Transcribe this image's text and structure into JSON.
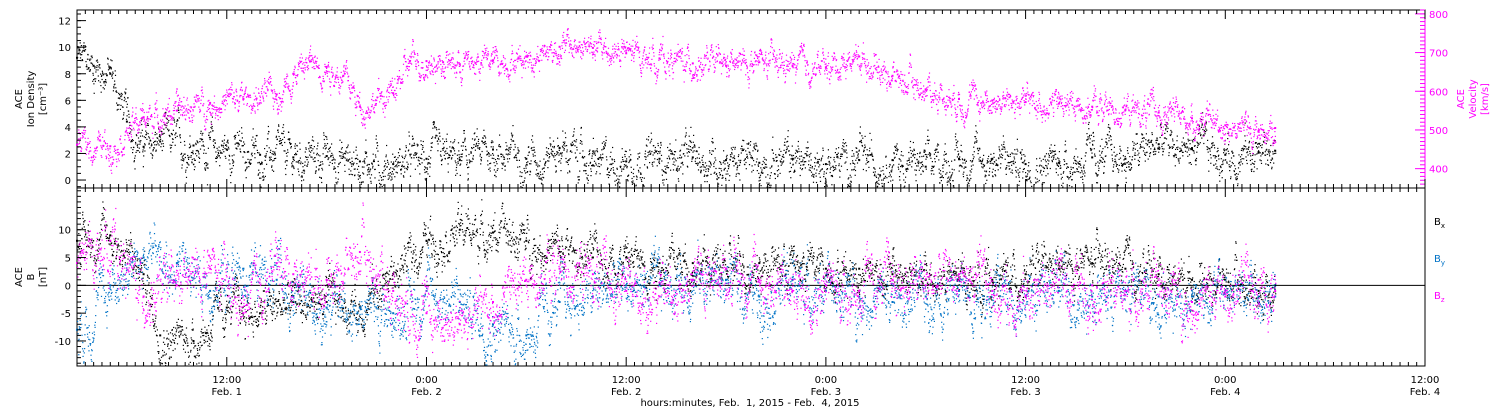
{
  "chart_data": [
    {
      "type": "scatter",
      "panel": "plasma",
      "ylabel_left": [
        "ACE",
        "Ion Density",
        "[cm⁻³]"
      ],
      "ylabel_right": [
        "ACE",
        "Velocity",
        "[km/s]"
      ],
      "ylim_left": [
        -0.6,
        12.8
      ],
      "ylim_right": [
        350,
        810
      ],
      "yticks_left": [
        "0",
        "2",
        "4",
        "6",
        "8",
        "10",
        "12"
      ],
      "yticks_right": [
        "400",
        "500",
        "600",
        "700",
        "800"
      ],
      "series": [
        {
          "axis": "left",
          "color": "#000000",
          "x": [
            -6,
            -4,
            -2,
            0,
            2,
            4,
            8,
            12,
            16,
            20,
            24,
            28,
            32,
            36,
            40,
            44,
            48,
            52,
            56,
            60,
            64,
            68,
            72,
            76,
            80,
            84,
            88,
            92,
            96,
            100,
            104,
            108,
            112,
            116,
            120,
            124,
            128,
            132,
            136,
            138
          ],
          "y": [
            9.2,
            8.6,
            8.0,
            4.4,
            2.5,
            2.9,
            2.6,
            2.3,
            1.9,
            1.7,
            1.8,
            1.4,
            1.2,
            1.6,
            1.5,
            2.3,
            1.6,
            2.4,
            1.1,
            1.4,
            1.6,
            1.7,
            1.5,
            1.3,
            1.6,
            1.2,
            1.5,
            1.5,
            1.0,
            1.6,
            1.6,
            1.2,
            1.3,
            1.7,
            1.6,
            2.7,
            2.4,
            1.9,
            2.1,
            2.2
          ]
        },
        {
          "axis": "right",
          "color": "#ff00ff",
          "x": [
            -6,
            -2,
            2,
            6,
            10,
            14,
            18,
            20,
            22,
            24,
            26,
            28,
            32,
            34,
            36,
            38,
            40,
            44,
            48,
            52,
            56,
            60,
            64,
            68,
            72,
            76,
            80,
            84,
            88,
            92,
            96,
            100,
            104,
            108,
            112,
            116,
            120,
            124,
            128,
            132,
            136,
            138
          ],
          "y": [
            462,
            458,
            533,
            550,
            570,
            580,
            592,
            645,
            677,
            663,
            640,
            560,
            595,
            678,
            678,
            675,
            670,
            680,
            690,
            715,
            712,
            698,
            685,
            672,
            666,
            675,
            665,
            662,
            690,
            640,
            605,
            580,
            576,
            572,
            568,
            560,
            552,
            545,
            530,
            512,
            498,
            505
          ]
        }
      ]
    },
    {
      "type": "scatter",
      "panel": "magnetic field",
      "ylabel_left": [
        "ACE",
        "B",
        "[nT]"
      ],
      "ylim_left": [
        -14.5,
        17.5
      ],
      "yticks_left": [
        "-10",
        "-5",
        "0",
        "5",
        "10"
      ],
      "zero_line": true,
      "legend": [
        "Bx",
        "By",
        "Bz"
      ],
      "legend_placement": "right",
      "series": [
        {
          "name": "Bx",
          "color": "#000000",
          "x": [
            -6,
            -2,
            2,
            4,
            8,
            12,
            16,
            20,
            24,
            28,
            32,
            36,
            40,
            44,
            48,
            52,
            56,
            60,
            64,
            68,
            72,
            76,
            80,
            84,
            88,
            92,
            96,
            100,
            104,
            108,
            112,
            116,
            120,
            124,
            128,
            132,
            136,
            138
          ],
          "y": [
            8,
            9,
            2,
            -9,
            -10,
            -4,
            -5,
            -3,
            -3,
            -4,
            2,
            8,
            10,
            9.5,
            8,
            6,
            5,
            5,
            4,
            4,
            3,
            4,
            4,
            3,
            3,
            2,
            1,
            1,
            1,
            2,
            3,
            4,
            3,
            2,
            1,
            1,
            -1,
            0
          ]
        },
        {
          "name": "By",
          "color": "#0072c6",
          "x": [
            -6,
            -2,
            2,
            6,
            10,
            14,
            18,
            20,
            24,
            28,
            32,
            36,
            40,
            44,
            48,
            52,
            56,
            60,
            64,
            68,
            72,
            76,
            80,
            84,
            88,
            92,
            96,
            100,
            104,
            108,
            112,
            116,
            120,
            124,
            128,
            132,
            136,
            138
          ],
          "y": [
            -8,
            0,
            5,
            4,
            -1,
            3,
            1,
            -2,
            -4,
            -4,
            -5,
            -1,
            -3,
            -7,
            -9,
            -3,
            -2,
            0,
            0,
            1,
            1,
            -2,
            1,
            -1,
            -2,
            -3,
            -2,
            -1,
            -1,
            -2,
            -1,
            -2,
            -1,
            -2,
            -2,
            -1,
            -2,
            -2
          ]
        },
        {
          "name": "Bz",
          "color": "#ff00ff",
          "x": [
            -6,
            -2,
            2,
            6,
            10,
            14,
            18,
            20,
            24,
            28,
            32,
            36,
            40,
            44,
            48,
            52,
            56,
            60,
            64,
            68,
            72,
            76,
            80,
            84,
            88,
            92,
            96,
            100,
            104,
            108,
            112,
            116,
            120,
            124,
            128,
            132,
            136,
            138
          ],
          "y": [
            4,
            8,
            -2,
            0,
            3,
            -5,
            4,
            2,
            1,
            6,
            -1,
            -5,
            -7,
            -3,
            1,
            3,
            2,
            -1,
            -2,
            1,
            3,
            1,
            -1,
            0,
            -1,
            1,
            0,
            2,
            -1,
            -2,
            1,
            0,
            -1,
            0,
            -3,
            -2,
            1,
            -1
          ]
        }
      ]
    }
  ],
  "x_axis": {
    "xlim_hours": [
      -6.0,
      156.0
    ],
    "ticks_hours": [
      12,
      36,
      60,
      84,
      108,
      132,
      156
    ],
    "tick_labels": [
      "12:00",
      "0:00",
      "12:00",
      "0:00",
      "12:00",
      "0:00",
      "12:00"
    ],
    "day_labels": [
      "Feb. 1",
      "Feb. 2",
      "Feb. 2",
      "Feb. 3",
      "Feb. 3",
      "Feb. 4",
      "Feb. 4"
    ],
    "title": "hours:minutes, Feb.  1, 2015 - Feb.  4, 2015"
  },
  "legend_labels": {
    "bx": {
      "base": "B",
      "sub": "x"
    },
    "by": {
      "base": "B",
      "sub": "y"
    },
    "bz": {
      "base": "B",
      "sub": "z"
    }
  },
  "colors": {
    "density": "#000000",
    "velocity": "#ff00ff",
    "bx": "#000000",
    "by": "#0072c6",
    "bz": "#ff00ff",
    "frame": "#000000"
  }
}
